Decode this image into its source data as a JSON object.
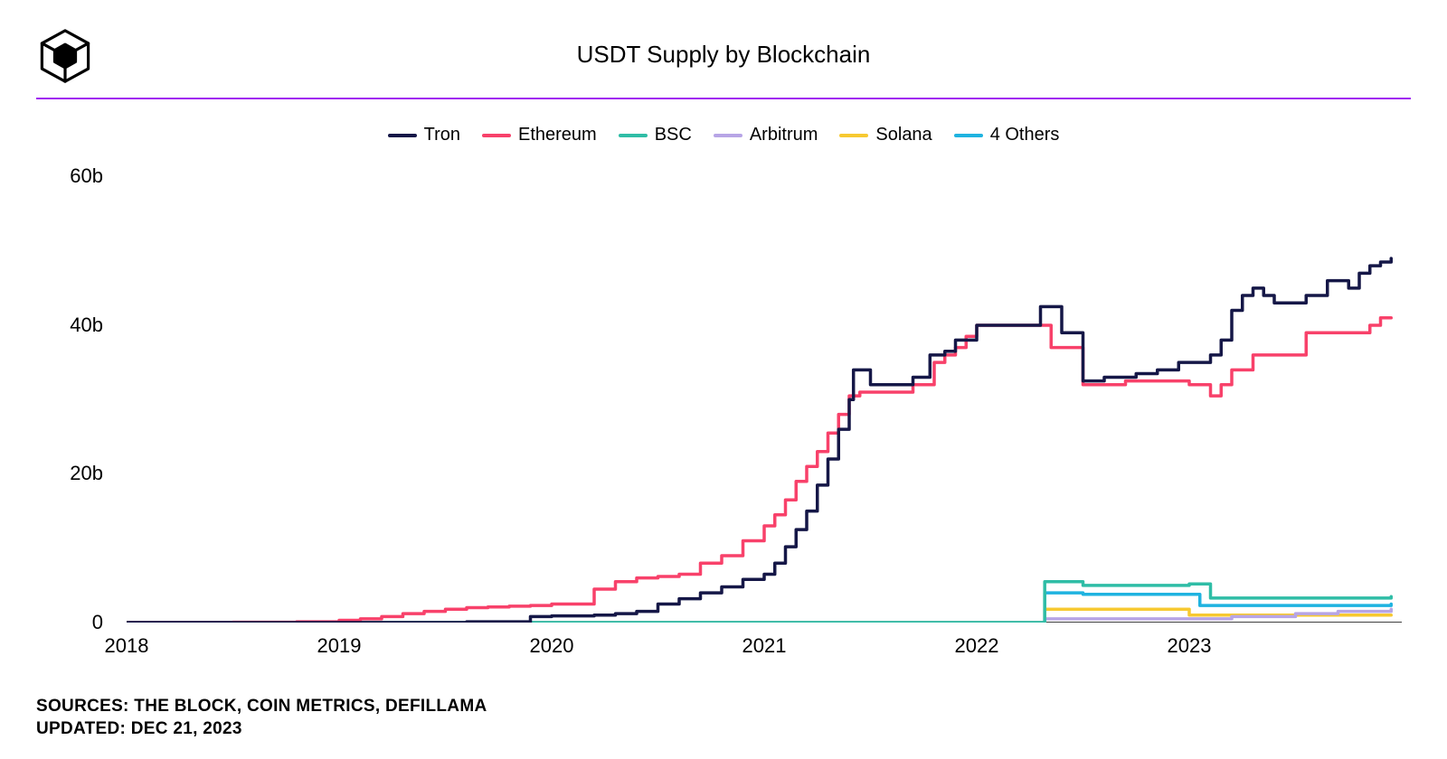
{
  "title": "USDT Supply by Blockchain",
  "divider_color": "#a020f0",
  "background_color": "#ffffff",
  "footer": {
    "sources_label": "SOURCES:",
    "sources_value": "THE BLOCK, COIN METRICS, DEFILLAMA",
    "updated_label": "UPDATED:",
    "updated_value": "DEC 21, 2023"
  },
  "chart": {
    "type": "line-step",
    "title_fontsize": 26,
    "axis_label_fontsize": 22,
    "legend_fontsize": 20,
    "footer_fontsize": 19,
    "line_width": 3.5,
    "xlim": [
      2018,
      2024
    ],
    "ylim": [
      0,
      62
    ],
    "y_ticks": [
      0,
      20,
      40,
      60
    ],
    "y_tick_labels": [
      "0",
      "20b",
      "40b",
      "60b"
    ],
    "x_ticks": [
      2018,
      2019,
      2020,
      2021,
      2022,
      2023
    ],
    "x_tick_labels": [
      "2018",
      "2019",
      "2020",
      "2021",
      "2022",
      "2023"
    ],
    "axis_line_color": "#000000",
    "series": [
      {
        "name": "Tron",
        "color": "#151747",
        "data": [
          [
            2018.0,
            0
          ],
          [
            2019.3,
            0
          ],
          [
            2019.6,
            0.1
          ],
          [
            2019.9,
            0.8
          ],
          [
            2020.0,
            0.9
          ],
          [
            2020.2,
            1.0
          ],
          [
            2020.3,
            1.2
          ],
          [
            2020.4,
            1.5
          ],
          [
            2020.5,
            2.5
          ],
          [
            2020.6,
            3.2
          ],
          [
            2020.7,
            4.0
          ],
          [
            2020.8,
            4.8
          ],
          [
            2020.9,
            5.8
          ],
          [
            2021.0,
            6.5
          ],
          [
            2021.05,
            8.0
          ],
          [
            2021.1,
            10.2
          ],
          [
            2021.15,
            12.5
          ],
          [
            2021.2,
            15.0
          ],
          [
            2021.25,
            18.5
          ],
          [
            2021.3,
            22.0
          ],
          [
            2021.35,
            26.0
          ],
          [
            2021.4,
            30.0
          ],
          [
            2021.42,
            34.0
          ],
          [
            2021.5,
            32.0
          ],
          [
            2021.55,
            32.0
          ],
          [
            2021.6,
            32.0
          ],
          [
            2021.7,
            33.0
          ],
          [
            2021.78,
            36.0
          ],
          [
            2021.85,
            36.5
          ],
          [
            2021.9,
            38.0
          ],
          [
            2022.0,
            40.0
          ],
          [
            2022.1,
            40.0
          ],
          [
            2022.15,
            40.0
          ],
          [
            2022.2,
            40.0
          ],
          [
            2022.25,
            40.0
          ],
          [
            2022.3,
            42.5
          ],
          [
            2022.35,
            42.5
          ],
          [
            2022.4,
            39.0
          ],
          [
            2022.45,
            39.0
          ],
          [
            2022.5,
            32.5
          ],
          [
            2022.6,
            33.0
          ],
          [
            2022.7,
            33.0
          ],
          [
            2022.75,
            33.5
          ],
          [
            2022.8,
            33.5
          ],
          [
            2022.85,
            34.0
          ],
          [
            2022.9,
            34.0
          ],
          [
            2022.95,
            35.0
          ],
          [
            2023.0,
            35.0
          ],
          [
            2023.1,
            36.0
          ],
          [
            2023.15,
            38.0
          ],
          [
            2023.2,
            42.0
          ],
          [
            2023.25,
            44.0
          ],
          [
            2023.3,
            45.0
          ],
          [
            2023.35,
            44.0
          ],
          [
            2023.4,
            43.0
          ],
          [
            2023.45,
            43.0
          ],
          [
            2023.5,
            43.0
          ],
          [
            2023.55,
            44.0
          ],
          [
            2023.6,
            44.0
          ],
          [
            2023.65,
            46.0
          ],
          [
            2023.7,
            46.0
          ],
          [
            2023.75,
            45.0
          ],
          [
            2023.8,
            47.0
          ],
          [
            2023.85,
            48.0
          ],
          [
            2023.9,
            48.5
          ],
          [
            2023.95,
            49.0
          ]
        ]
      },
      {
        "name": "Ethereum",
        "color": "#f8416a",
        "data": [
          [
            2018.0,
            0
          ],
          [
            2018.5,
            0.05
          ],
          [
            2018.8,
            0.1
          ],
          [
            2019.0,
            0.3
          ],
          [
            2019.1,
            0.5
          ],
          [
            2019.2,
            0.8
          ],
          [
            2019.3,
            1.2
          ],
          [
            2019.4,
            1.5
          ],
          [
            2019.5,
            1.8
          ],
          [
            2019.6,
            2.0
          ],
          [
            2019.7,
            2.1
          ],
          [
            2019.8,
            2.2
          ],
          [
            2019.9,
            2.3
          ],
          [
            2020.0,
            2.5
          ],
          [
            2020.1,
            2.5
          ],
          [
            2020.2,
            4.5
          ],
          [
            2020.3,
            5.5
          ],
          [
            2020.4,
            6.0
          ],
          [
            2020.5,
            6.2
          ],
          [
            2020.6,
            6.5
          ],
          [
            2020.7,
            8.0
          ],
          [
            2020.8,
            9.0
          ],
          [
            2020.9,
            11.0
          ],
          [
            2021.0,
            13.0
          ],
          [
            2021.05,
            14.5
          ],
          [
            2021.1,
            16.5
          ],
          [
            2021.15,
            19.0
          ],
          [
            2021.2,
            21.0
          ],
          [
            2021.25,
            23.0
          ],
          [
            2021.3,
            25.5
          ],
          [
            2021.35,
            28.0
          ],
          [
            2021.4,
            30.5
          ],
          [
            2021.45,
            31.0
          ],
          [
            2021.5,
            31.0
          ],
          [
            2021.6,
            31.0
          ],
          [
            2021.7,
            32.0
          ],
          [
            2021.8,
            35.0
          ],
          [
            2021.85,
            36.0
          ],
          [
            2021.9,
            37.0
          ],
          [
            2021.95,
            38.5
          ],
          [
            2022.0,
            40.0
          ],
          [
            2022.05,
            40.0
          ],
          [
            2022.1,
            40.0
          ],
          [
            2022.15,
            40.0
          ],
          [
            2022.2,
            40.0
          ],
          [
            2022.3,
            40.0
          ],
          [
            2022.35,
            37.0
          ],
          [
            2022.4,
            37.0
          ],
          [
            2022.45,
            37.0
          ],
          [
            2022.5,
            32.0
          ],
          [
            2022.6,
            32.0
          ],
          [
            2022.7,
            32.5
          ],
          [
            2022.8,
            32.5
          ],
          [
            2022.9,
            32.5
          ],
          [
            2023.0,
            32.0
          ],
          [
            2023.05,
            32.0
          ],
          [
            2023.1,
            30.5
          ],
          [
            2023.15,
            32.0
          ],
          [
            2023.2,
            34.0
          ],
          [
            2023.3,
            36.0
          ],
          [
            2023.4,
            36.0
          ],
          [
            2023.5,
            36.0
          ],
          [
            2023.55,
            39.0
          ],
          [
            2023.6,
            39.0
          ],
          [
            2023.7,
            39.0
          ],
          [
            2023.8,
            39.0
          ],
          [
            2023.85,
            40.0
          ],
          [
            2023.9,
            41.0
          ],
          [
            2023.95,
            41.0
          ]
        ]
      },
      {
        "name": "BSC",
        "color": "#2fbda6",
        "data": [
          [
            2018.0,
            0
          ],
          [
            2022.3,
            0
          ],
          [
            2022.32,
            5.5
          ],
          [
            2022.4,
            5.5
          ],
          [
            2022.5,
            5.0
          ],
          [
            2022.6,
            5.0
          ],
          [
            2022.7,
            5.0
          ],
          [
            2022.8,
            5.0
          ],
          [
            2022.9,
            5.0
          ],
          [
            2023.0,
            5.2
          ],
          [
            2023.1,
            3.3
          ],
          [
            2023.2,
            3.3
          ],
          [
            2023.3,
            3.3
          ],
          [
            2023.5,
            3.3
          ],
          [
            2023.7,
            3.3
          ],
          [
            2023.95,
            3.5
          ]
        ]
      },
      {
        "name": "Arbitrum",
        "color": "#b7a5e6",
        "data": [
          [
            2018.0,
            0
          ],
          [
            2022.3,
            0
          ],
          [
            2022.32,
            0.5
          ],
          [
            2022.5,
            0.5
          ],
          [
            2023.0,
            0.5
          ],
          [
            2023.2,
            0.8
          ],
          [
            2023.5,
            1.2
          ],
          [
            2023.7,
            1.5
          ],
          [
            2023.95,
            1.8
          ]
        ]
      },
      {
        "name": "Solana",
        "color": "#f7c931",
        "data": [
          [
            2018.0,
            0
          ],
          [
            2022.3,
            0
          ],
          [
            2022.32,
            1.8
          ],
          [
            2022.4,
            1.8
          ],
          [
            2022.5,
            1.8
          ],
          [
            2022.7,
            1.8
          ],
          [
            2022.9,
            1.8
          ],
          [
            2023.0,
            1.0
          ],
          [
            2023.1,
            1.0
          ],
          [
            2023.5,
            1.0
          ],
          [
            2023.95,
            1.0
          ]
        ]
      },
      {
        "name": "4 Others",
        "color": "#1fb3e0",
        "data": [
          [
            2018.0,
            0
          ],
          [
            2022.3,
            0
          ],
          [
            2022.32,
            4.0
          ],
          [
            2022.4,
            4.0
          ],
          [
            2022.5,
            3.8
          ],
          [
            2022.6,
            3.8
          ],
          [
            2022.8,
            3.8
          ],
          [
            2023.0,
            3.8
          ],
          [
            2023.05,
            2.3
          ],
          [
            2023.2,
            2.3
          ],
          [
            2023.5,
            2.3
          ],
          [
            2023.8,
            2.3
          ],
          [
            2023.95,
            2.5
          ]
        ]
      }
    ]
  }
}
